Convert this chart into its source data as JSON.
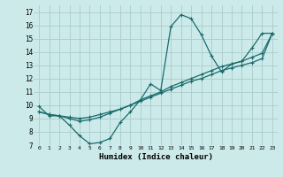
{
  "title": "",
  "xlabel": "Humidex (Indice chaleur)",
  "background_color": "#cceaea",
  "grid_color": "#aacccc",
  "line_color": "#1a6b6b",
  "xlim": [
    -0.5,
    23.5
  ],
  "ylim": [
    7,
    17.5
  ],
  "yticks": [
    7,
    8,
    9,
    10,
    11,
    12,
    13,
    14,
    15,
    16,
    17
  ],
  "xticks": [
    0,
    1,
    2,
    3,
    4,
    5,
    6,
    7,
    8,
    9,
    10,
    11,
    12,
    13,
    14,
    15,
    16,
    17,
    18,
    19,
    20,
    21,
    22,
    23
  ],
  "series1_x": [
    0,
    1,
    2,
    3,
    4,
    5,
    6,
    7,
    8,
    9,
    10,
    11,
    12,
    13,
    14,
    15,
    16,
    17,
    18,
    19,
    20,
    21,
    22,
    23
  ],
  "series1_y": [
    9.9,
    9.2,
    9.2,
    8.5,
    7.7,
    7.1,
    7.2,
    7.5,
    8.7,
    9.5,
    10.4,
    11.6,
    11.1,
    15.9,
    16.8,
    16.5,
    15.3,
    13.7,
    12.5,
    13.1,
    13.3,
    14.3,
    15.4,
    15.4
  ],
  "series2_x": [
    0,
    1,
    2,
    3,
    4,
    5,
    6,
    7,
    8,
    9,
    10,
    11,
    12,
    13,
    14,
    15,
    16,
    17,
    18,
    19,
    20,
    21,
    22,
    23
  ],
  "series2_y": [
    9.5,
    9.3,
    9.2,
    9.1,
    9.0,
    9.1,
    9.3,
    9.5,
    9.7,
    10.0,
    10.3,
    10.6,
    10.9,
    11.2,
    11.5,
    11.8,
    12.0,
    12.3,
    12.6,
    12.8,
    13.0,
    13.2,
    13.5,
    15.4
  ],
  "series3_x": [
    0,
    1,
    2,
    3,
    4,
    5,
    6,
    7,
    8,
    9,
    10,
    11,
    12,
    13,
    14,
    15,
    16,
    17,
    18,
    19,
    20,
    21,
    22,
    23
  ],
  "series3_y": [
    9.5,
    9.3,
    9.2,
    9.0,
    8.8,
    8.9,
    9.1,
    9.4,
    9.7,
    10.0,
    10.4,
    10.7,
    11.0,
    11.4,
    11.7,
    12.0,
    12.3,
    12.6,
    12.9,
    13.1,
    13.3,
    13.6,
    13.9,
    15.4
  ]
}
